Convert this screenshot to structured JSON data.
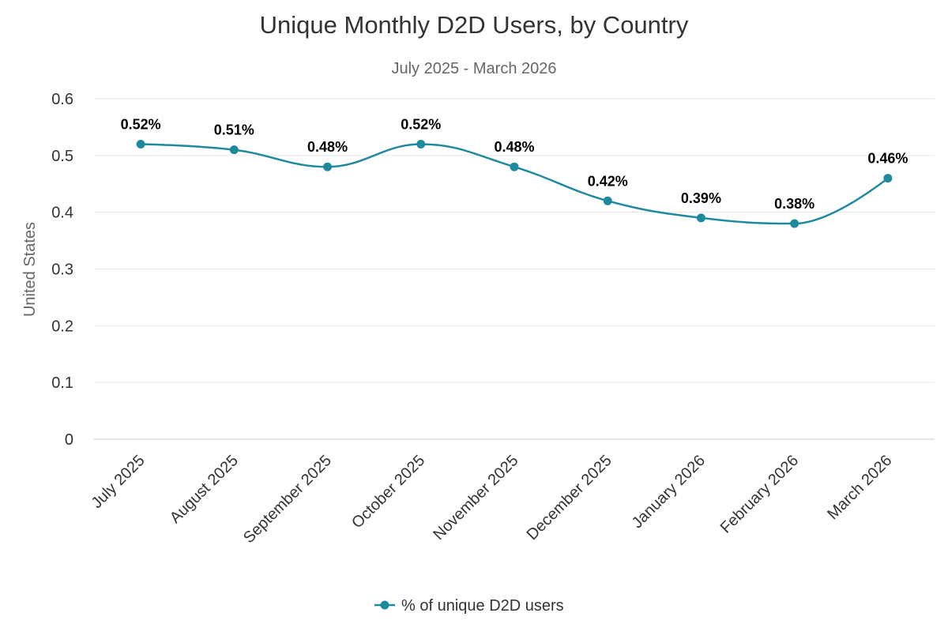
{
  "chart_data": {
    "type": "line",
    "title": "Unique Monthly D2D Users, by Country",
    "subtitle": "July 2025 - March 2026",
    "xlabel": "",
    "ylabel": "United States",
    "ylim": [
      0,
      0.6
    ],
    "yticks": [
      "0",
      "0.1",
      "0.2",
      "0.3",
      "0.4",
      "0.5",
      "0.6"
    ],
    "grid": true,
    "smooth": true,
    "legend_position": "bottom",
    "categories": [
      "July 2025",
      "August 2025",
      "September 2025",
      "October 2025",
      "November 2025",
      "December 2025",
      "January 2026",
      "February 2026",
      "March 2026"
    ],
    "series": [
      {
        "name": "% of unique D2D users",
        "color": "#1f8a9e",
        "values": [
          0.52,
          0.51,
          0.48,
          0.52,
          0.48,
          0.42,
          0.39,
          0.38,
          0.46
        ],
        "data_labels": [
          "0.52%",
          "0.51%",
          "0.48%",
          "0.52%",
          "0.48%",
          "0.42%",
          "0.39%",
          "0.38%",
          "0.46%"
        ]
      }
    ]
  }
}
